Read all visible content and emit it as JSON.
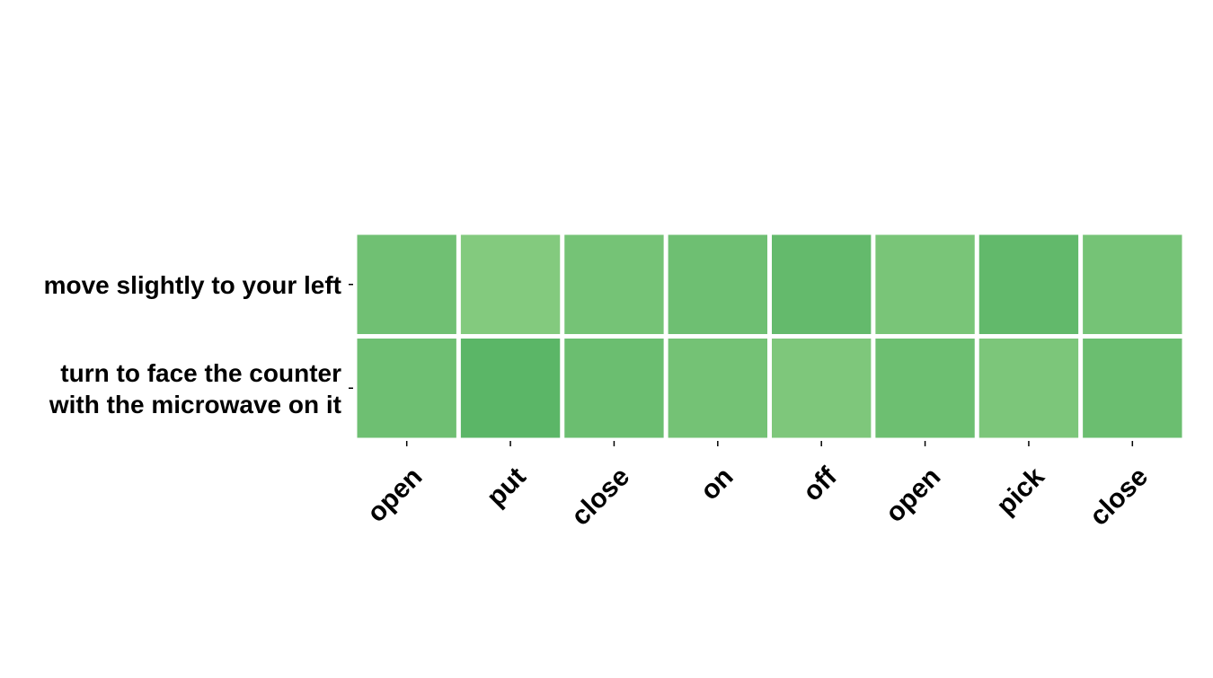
{
  "chart_data": {
    "type": "heatmap",
    "rows": [
      [
        "move slightly to your left"
      ],
      [
        "turn to face the counter",
        "with the microwave on it"
      ]
    ],
    "columns": [
      "open",
      "put",
      "close",
      "on",
      "off",
      "open",
      "pick",
      "close"
    ],
    "values": [
      [
        0.62,
        0.4,
        0.56,
        0.64,
        0.76,
        0.52,
        0.78,
        0.56
      ],
      [
        0.64,
        0.86,
        0.68,
        0.58,
        0.46,
        0.66,
        0.48,
        0.68
      ]
    ],
    "colormap": {
      "low": "#a6db92",
      "high": "#4fb060"
    },
    "colorbar": false,
    "grid_color": "#ffffff"
  }
}
